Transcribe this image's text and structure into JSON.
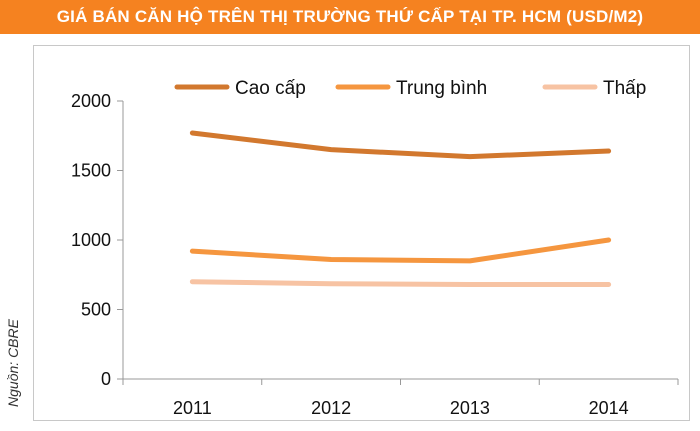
{
  "chart_data": {
    "type": "line",
    "title": "GIÁ BÁN CĂN HỘ TRÊN THỊ TRƯỜNG THỨ CẤP TẠI TP. HCM (USD/M2)",
    "categories": [
      "2011",
      "2012",
      "2013",
      "2014"
    ],
    "series": [
      {
        "name": "Cao cấp",
        "values": [
          1770,
          1650,
          1600,
          1640
        ],
        "color": "#d2782e"
      },
      {
        "name": "Trung bình",
        "values": [
          920,
          860,
          850,
          1000
        ],
        "color": "#f5963f"
      },
      {
        "name": "Thấp",
        "values": [
          700,
          685,
          680,
          680
        ],
        "color": "#f7c3a3"
      }
    ],
    "ylim": [
      0,
      2000
    ],
    "yticks": [
      "0",
      "500",
      "1000",
      "1500",
      "2000"
    ],
    "grid": false,
    "legend_position": "top"
  },
  "source": "Nguồn: CBRE"
}
